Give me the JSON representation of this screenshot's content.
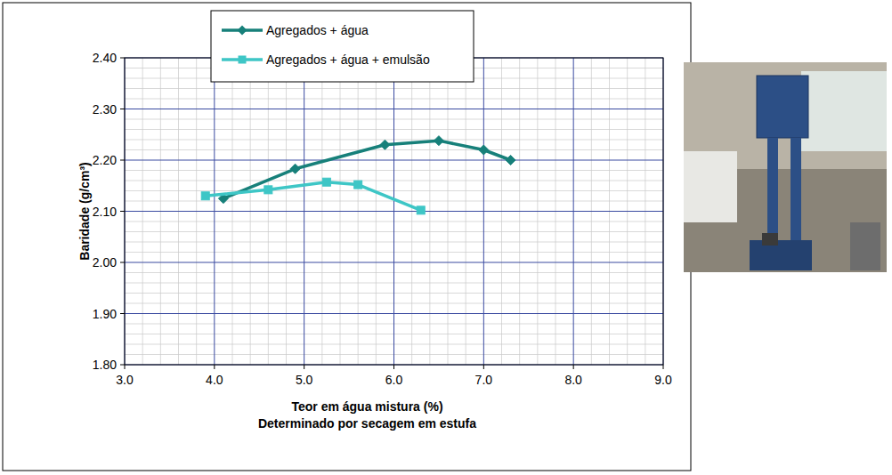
{
  "chart_data": {
    "type": "line",
    "xlabel": "Teor em água mistura (%)",
    "xlabel_note": "Determinado por secagem em estufa",
    "ylabel": "Baridade (g/cm³)",
    "xlim": [
      3.0,
      9.0
    ],
    "ylim": [
      1.8,
      2.4
    ],
    "xticks": [
      {
        "value": 3.0,
        "label": "3.0"
      },
      {
        "value": 4.0,
        "label": "4.0"
      },
      {
        "value": 5.0,
        "label": "5.0"
      },
      {
        "value": 6.0,
        "label": "6.0"
      },
      {
        "value": 7.0,
        "label": "7.0"
      },
      {
        "value": 8.0,
        "label": "8.0"
      },
      {
        "value": 9.0,
        "label": "9.0"
      }
    ],
    "yticks": [
      {
        "value": 1.8,
        "label": "1.80"
      },
      {
        "value": 1.9,
        "label": "1.90"
      },
      {
        "value": 2.0,
        "label": "2.00"
      },
      {
        "value": 2.1,
        "label": "2.10"
      },
      {
        "value": 2.2,
        "label": "2.20"
      },
      {
        "value": 2.3,
        "label": "2.30"
      },
      {
        "value": 2.4,
        "label": "2.40"
      }
    ],
    "grid": true,
    "legend": "top",
    "series": [
      {
        "name": "Agregados + água",
        "color": "#17807a",
        "marker": "diamond",
        "line_style": "solid",
        "x": [
          4.1,
          4.9,
          5.9,
          6.5,
          7.0,
          7.3
        ],
        "values": [
          2.125,
          2.183,
          2.23,
          2.238,
          2.22,
          2.2
        ]
      },
      {
        "name": "Agregados + água + emulsão",
        "color": "#3ec6c6",
        "marker": "square",
        "line_style": "solid",
        "x": [
          3.9,
          4.6,
          5.25,
          5.6,
          6.3
        ],
        "values": [
          2.13,
          2.142,
          2.157,
          2.152,
          2.102
        ]
      }
    ]
  }
}
